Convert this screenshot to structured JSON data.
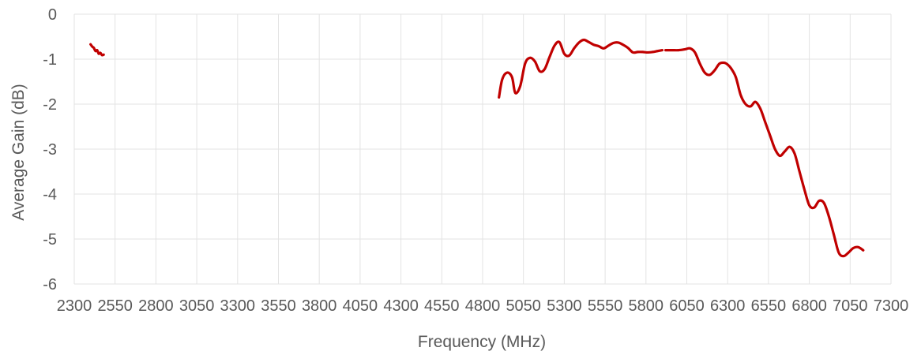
{
  "chart_data": {
    "type": "line",
    "title": "",
    "xlabel": "Frequency (MHz)",
    "ylabel": "Average Gain (dB)",
    "xlim": [
      2300,
      7300
    ],
    "ylim": [
      -6,
      0
    ],
    "xticks": [
      2300,
      2550,
      2800,
      3050,
      3300,
      3550,
      3800,
      4050,
      4300,
      4550,
      4800,
      5050,
      5300,
      5550,
      5800,
      6050,
      6300,
      6550,
      6800,
      7050,
      7300
    ],
    "xtick_labels": [
      "2300",
      "2550",
      "2800",
      "3050",
      "3300",
      "3550",
      "3800",
      "4050",
      "4300",
      "4550",
      "4800",
      "5050",
      "5300",
      "5550",
      "5800",
      "6050",
      "6300",
      "6550",
      "6800",
      "7050",
      "7300"
    ],
    "yticks": [
      0,
      -1,
      -2,
      -3,
      -4,
      -5,
      -6
    ],
    "ytick_labels": [
      "0",
      "-1",
      "-2",
      "-3",
      "-4",
      "-5",
      "-6"
    ],
    "grid": true,
    "legend": "none",
    "series_color": "#c00000",
    "segments": [
      {
        "x": [
          2400,
          2410,
          2420,
          2430,
          2440,
          2450,
          2460,
          2470,
          2480
        ],
        "y": [
          -0.67,
          -0.72,
          -0.75,
          -0.82,
          -0.8,
          -0.88,
          -0.86,
          -0.91,
          -0.9
        ]
      },
      {
        "x": [
          4900,
          4920,
          4950,
          4980,
          5000,
          5030,
          5060,
          5090,
          5120,
          5150,
          5180,
          5210,
          5240,
          5270,
          5300,
          5330,
          5360,
          5390,
          5420,
          5450,
          5480,
          5510,
          5540,
          5570,
          5600,
          5630,
          5660,
          5690,
          5720,
          5750,
          5780,
          5810,
          5840,
          5870,
          5900
        ],
        "y": [
          -1.85,
          -1.45,
          -1.3,
          -1.4,
          -1.75,
          -1.6,
          -1.1,
          -0.97,
          -1.05,
          -1.27,
          -1.22,
          -0.95,
          -0.7,
          -0.62,
          -0.88,
          -0.92,
          -0.76,
          -0.63,
          -0.57,
          -0.62,
          -0.68,
          -0.71,
          -0.76,
          -0.7,
          -0.64,
          -0.63,
          -0.68,
          -0.75,
          -0.85,
          -0.84,
          -0.84,
          -0.85,
          -0.84,
          -0.82,
          -0.8
        ]
      },
      {
        "x": [
          5920,
          5960,
          6000,
          6040,
          6070,
          6100,
          6130,
          6160,
          6190,
          6220,
          6250,
          6280,
          6300,
          6320,
          6350,
          6380,
          6410,
          6440,
          6470,
          6500,
          6530,
          6560,
          6590,
          6620,
          6650,
          6680,
          6710,
          6740,
          6770,
          6800,
          6830,
          6860,
          6890,
          6920,
          6950,
          6980,
          7010,
          7040,
          7070,
          7100,
          7130
        ],
        "y": [
          -0.8,
          -0.8,
          -0.8,
          -0.78,
          -0.76,
          -0.85,
          -1.1,
          -1.3,
          -1.35,
          -1.25,
          -1.1,
          -1.08,
          -1.12,
          -1.2,
          -1.4,
          -1.8,
          -2.0,
          -2.05,
          -1.95,
          -2.1,
          -2.4,
          -2.7,
          -3.0,
          -3.15,
          -3.05,
          -2.95,
          -3.1,
          -3.5,
          -3.9,
          -4.25,
          -4.3,
          -4.15,
          -4.2,
          -4.5,
          -4.9,
          -5.3,
          -5.38,
          -5.3,
          -5.2,
          -5.18,
          -5.25
        ]
      }
    ]
  }
}
